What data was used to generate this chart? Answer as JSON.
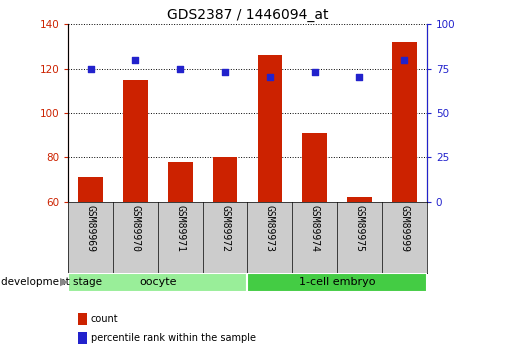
{
  "title": "GDS2387 / 1446094_at",
  "categories": [
    "GSM89969",
    "GSM89970",
    "GSM89971",
    "GSM89972",
    "GSM89973",
    "GSM89974",
    "GSM89975",
    "GSM89999"
  ],
  "count_values": [
    71,
    115,
    78,
    80,
    126,
    91,
    62,
    132
  ],
  "percentile_values": [
    75,
    80,
    75,
    73,
    70,
    73,
    70,
    80
  ],
  "ylim_left": [
    60,
    140
  ],
  "ylim_right": [
    0,
    100
  ],
  "yticks_left": [
    60,
    80,
    100,
    120,
    140
  ],
  "yticks_right": [
    0,
    25,
    50,
    75,
    100
  ],
  "bar_color": "#cc2200",
  "dot_color": "#2222cc",
  "gray_bg": "#cccccc",
  "groups": [
    {
      "label": "oocyte",
      "start": 0,
      "end": 4,
      "color": "#99ee99"
    },
    {
      "label": "1-cell embryo",
      "start": 4,
      "end": 8,
      "color": "#44cc44"
    }
  ],
  "group_label": "development stage",
  "legend_items": [
    {
      "label": "count",
      "color": "#cc2200"
    },
    {
      "label": "percentile rank within the sample",
      "color": "#2222cc"
    }
  ],
  "title_fontsize": 10,
  "tick_fontsize": 7.5,
  "label_fontsize": 7,
  "cat_fontsize": 7
}
